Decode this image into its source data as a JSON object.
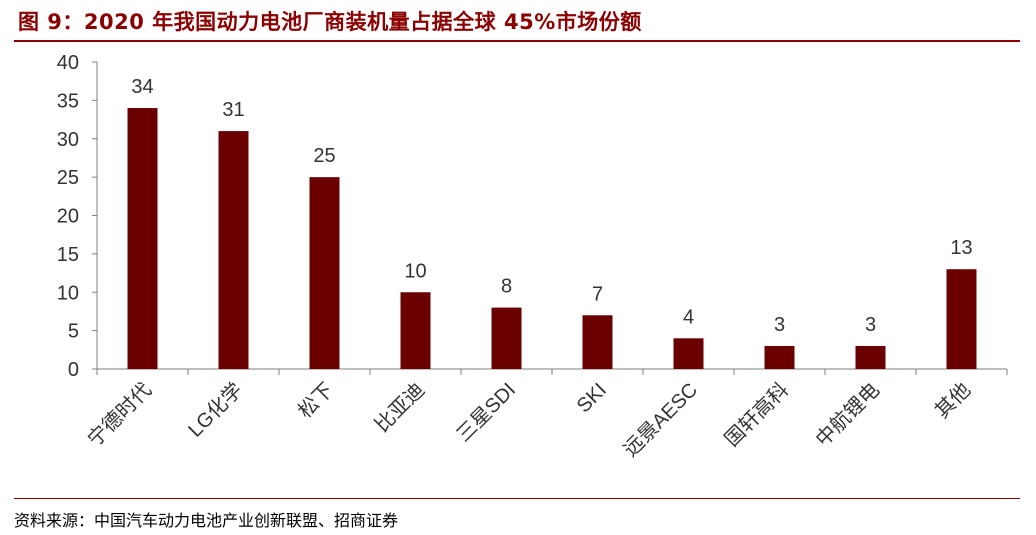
{
  "figure": {
    "title": "图 9：2020 年我国动力电池厂商装机量占据全球 45%市场份额",
    "source": "资料来源：中国汽车动力电池产业创新联盟、招商证券"
  },
  "colors": {
    "bar": "#6b0000",
    "accent": "#8b0000",
    "axis": "#7f7f7f",
    "text": "#333333"
  },
  "chart_data": {
    "type": "bar",
    "categories": [
      "宁德时代",
      "LG化学",
      "松下",
      "比亚迪",
      "三星SDI",
      "SKI",
      "远景AESC",
      "国轩高科",
      "中航锂电",
      "其他"
    ],
    "values": [
      34,
      31,
      25,
      10,
      8,
      7,
      4,
      3,
      3,
      13
    ],
    "ylim": [
      0,
      40
    ],
    "yticks": [
      0,
      5,
      10,
      15,
      20,
      25,
      30,
      35,
      40
    ],
    "grid": false,
    "data_labels": true,
    "xlabel": "",
    "ylabel": ""
  }
}
